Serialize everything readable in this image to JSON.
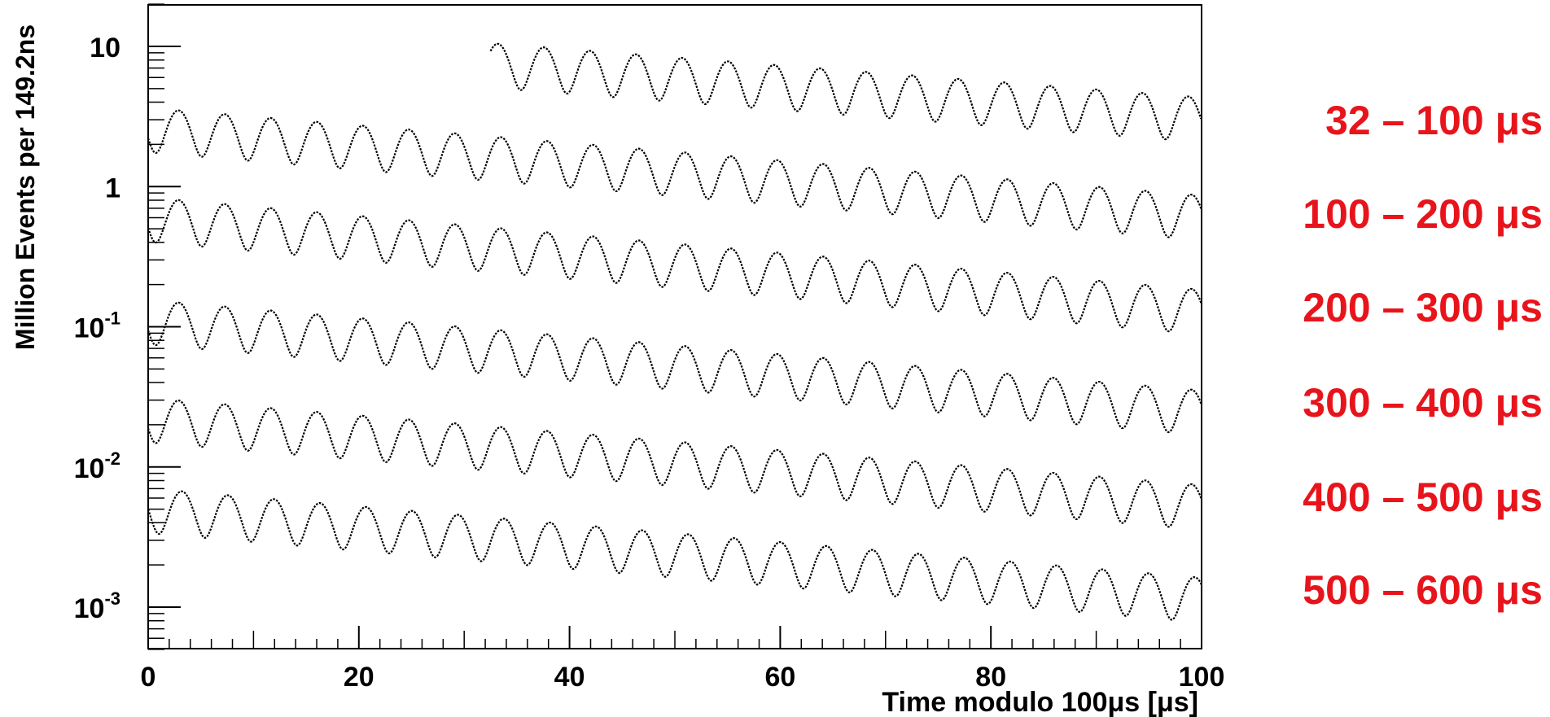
{
  "chart_data": {
    "type": "line",
    "title": "",
    "xlabel": "Time modulo 100μs [μs]",
    "ylabel": "Million Events per 149.2ns",
    "xlim": [
      0,
      100
    ],
    "ylim": [
      0.0005,
      20
    ],
    "y_scale": "log",
    "grid": false,
    "x_ticks": [
      0,
      20,
      40,
      60,
      80,
      100
    ],
    "x_tick_labels": [
      "0",
      "20",
      "40",
      "60",
      "80",
      "100"
    ],
    "y_ticks": [
      {
        "value": 10,
        "base": "10",
        "exp": ""
      },
      {
        "value": 1,
        "base": "1",
        "exp": ""
      },
      {
        "value": 0.1,
        "base": "10",
        "exp": "-1"
      },
      {
        "value": 0.01,
        "base": "10",
        "exp": "-2"
      },
      {
        "value": 0.001,
        "base": "10",
        "exp": "-3"
      }
    ],
    "label_color": "#e8141c",
    "line_color": "#000000",
    "oscillation_period_us": 4.37,
    "series": [
      {
        "name": "32 – 100  μs",
        "x_start": 32.5,
        "x_end": 100,
        "y_at_x_start": 7.8,
        "y_at_100": 3.2,
        "modulation": 0.35,
        "phase_peak_x": 33.2
      },
      {
        "name": "100 – 200  μs",
        "x_start": 0,
        "x_end": 100,
        "y_at_x_start": 2.7,
        "y_at_100": 0.64,
        "modulation": 0.35,
        "phase_peak_x": 2.9
      },
      {
        "name": "200 – 300  μs",
        "x_start": 0,
        "x_end": 100,
        "y_at_x_start": 0.62,
        "y_at_100": 0.136,
        "modulation": 0.35,
        "phase_peak_x": 2.9
      },
      {
        "name": "300 – 400  μs",
        "x_start": 0,
        "x_end": 100,
        "y_at_x_start": 0.115,
        "y_at_100": 0.026,
        "modulation": 0.35,
        "phase_peak_x": 2.9
      },
      {
        "name": "400 – 500  μs",
        "x_start": 0,
        "x_end": 100,
        "y_at_x_start": 0.023,
        "y_at_100": 0.0055,
        "modulation": 0.35,
        "phase_peak_x": 2.9
      },
      {
        "name": "500 – 600  μs",
        "x_start": 0,
        "x_end": 100,
        "y_at_x_start": 0.0052,
        "y_at_100": 0.0012,
        "modulation": 0.35,
        "phase_peak_x": 3.2
      }
    ]
  }
}
